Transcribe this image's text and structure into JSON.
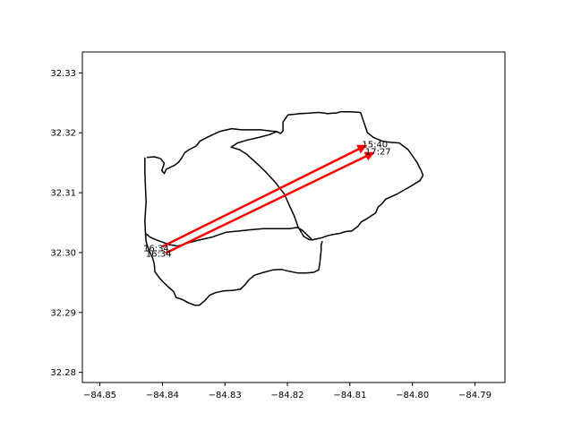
{
  "chart_data": {
    "type": "line",
    "title": "",
    "xlabel": "",
    "ylabel": "",
    "xlim": [
      -84.8528,
      -84.7852
    ],
    "ylim": [
      32.2783,
      32.3335
    ],
    "grid": false,
    "x_ticks": [
      -84.85,
      -84.84,
      -84.83,
      -84.82,
      -84.81,
      -84.8,
      -84.79
    ],
    "x_tick_labels": [
      "−84.85",
      "−84.84",
      "−84.83",
      "−84.82",
      "−84.81",
      "−84.80",
      "−84.79"
    ],
    "y_ticks": [
      32.28,
      32.29,
      32.3,
      32.31,
      32.32,
      32.33
    ],
    "y_tick_labels": [
      "32.28",
      "32.29",
      "32.30",
      "32.31",
      "32.32",
      "32.33"
    ],
    "boundaries": [
      {
        "color": "#000000",
        "points": [
          [
            -84.8425,
            32.3159
          ],
          [
            -84.8413,
            32.316
          ],
          [
            -84.8403,
            32.3157
          ],
          [
            -84.8397,
            32.3149
          ],
          [
            -84.8401,
            32.3137
          ],
          [
            -84.8397,
            32.3132
          ],
          [
            -84.8394,
            32.3139
          ],
          [
            -84.838,
            32.3146
          ],
          [
            -84.8374,
            32.3151
          ],
          [
            -84.8369,
            32.3158
          ],
          [
            -84.8364,
            32.3167
          ],
          [
            -84.8357,
            32.3172
          ],
          [
            -84.8346,
            32.3178
          ],
          [
            -84.834,
            32.3186
          ],
          [
            -84.8329,
            32.3192
          ],
          [
            -84.8317,
            32.3198
          ],
          [
            -84.8309,
            32.3202
          ],
          [
            -84.8297,
            32.3205
          ],
          [
            -84.8289,
            32.3207
          ],
          [
            -84.8274,
            32.3205
          ],
          [
            -84.8257,
            32.3205
          ],
          [
            -84.8243,
            32.3205
          ],
          [
            -84.8227,
            32.3203
          ],
          [
            -84.8217,
            32.3202
          ],
          [
            -84.8211,
            32.3199
          ],
          [
            -84.8207,
            32.3203
          ],
          [
            -84.8207,
            32.3203
          ],
          [
            -84.8207,
            32.3218
          ],
          [
            -84.8199,
            32.323
          ],
          [
            -84.818,
            32.3232
          ],
          [
            -84.8165,
            32.3233
          ],
          [
            -84.815,
            32.3234
          ],
          [
            -84.8141,
            32.3233
          ],
          [
            -84.8136,
            32.3232
          ],
          [
            -84.8127,
            32.3233
          ],
          [
            -84.8122,
            32.3233
          ],
          [
            -84.8115,
            32.3235
          ],
          [
            -84.81,
            32.3235
          ],
          [
            -84.8083,
            32.3234
          ],
          [
            -84.8072,
            32.32
          ],
          [
            -84.8062,
            32.3192
          ],
          [
            -84.8048,
            32.3186
          ],
          [
            -84.8035,
            32.3184
          ],
          [
            -84.8021,
            32.3183
          ],
          [
            -84.8007,
            32.3172
          ],
          [
            -84.7993,
            32.3151
          ],
          [
            -84.7986,
            32.3137
          ],
          [
            -84.7983,
            32.3129
          ],
          [
            -84.7988,
            32.312
          ],
          [
            -84.8004,
            32.311
          ],
          [
            -84.8024,
            32.3098
          ],
          [
            -84.8043,
            32.3089
          ],
          [
            -84.8049,
            32.3081
          ],
          [
            -84.8055,
            32.3076
          ],
          [
            -84.8059,
            32.3066
          ],
          [
            -84.8072,
            32.3057
          ],
          [
            -84.8082,
            32.3051
          ],
          [
            -84.8087,
            32.3044
          ],
          [
            -84.8097,
            32.3036
          ],
          [
            -84.8107,
            32.3035
          ],
          [
            -84.8116,
            32.3032
          ],
          [
            -84.8128,
            32.303
          ],
          [
            -84.8136,
            32.3028
          ],
          [
            -84.8144,
            32.3025
          ],
          [
            -84.8153,
            32.3023
          ],
          [
            -84.816,
            32.3021
          ],
          [
            -84.8166,
            32.3022
          ],
          [
            -84.8174,
            32.3027
          ],
          [
            -84.8183,
            32.3043
          ],
          [
            -84.8189,
            32.3061
          ],
          [
            -84.8197,
            32.3079
          ],
          [
            -84.8205,
            32.3098
          ],
          [
            -84.822,
            32.3118
          ],
          [
            -84.8235,
            32.3135
          ],
          [
            -84.825,
            32.315
          ],
          [
            -84.8265,
            32.3164
          ],
          [
            -84.8277,
            32.3172
          ],
          [
            -84.829,
            32.3176
          ],
          [
            -84.828,
            32.3183
          ],
          [
            -84.8264,
            32.3188
          ],
          [
            -84.8247,
            32.3192
          ],
          [
            -84.8229,
            32.3197
          ],
          [
            -84.8217,
            32.3202
          ]
        ]
      },
      {
        "color": "#000000",
        "points": [
          [
            -84.8428,
            32.3159
          ],
          [
            -84.8428,
            32.3135
          ],
          [
            -84.8427,
            32.3108
          ],
          [
            -84.8426,
            32.3085
          ],
          [
            -84.8428,
            32.3053
          ],
          [
            -84.8427,
            32.3032
          ],
          [
            -84.842,
            32.3026
          ],
          [
            -84.8412,
            32.3022
          ],
          [
            -84.8399,
            32.3017
          ],
          [
            -84.8388,
            32.3013
          ],
          [
            -84.8375,
            32.3011
          ],
          [
            -84.8359,
            32.3016
          ],
          [
            -84.8341,
            32.3021
          ],
          [
            -84.832,
            32.3026
          ],
          [
            -84.8298,
            32.3034
          ],
          [
            -84.8278,
            32.3036
          ],
          [
            -84.8259,
            32.3038
          ],
          [
            -84.8239,
            32.304
          ],
          [
            -84.8214,
            32.304
          ],
          [
            -84.8197,
            32.304
          ],
          [
            -84.8184,
            32.3042
          ],
          [
            -84.8176,
            32.3037
          ],
          [
            -84.8168,
            32.3029
          ],
          [
            -84.816,
            32.3021
          ]
        ]
      },
      {
        "color": "#000000",
        "points": [
          [
            -84.8427,
            32.3032
          ],
          [
            -84.8426,
            32.3018
          ],
          [
            -84.8422,
            32.3005
          ],
          [
            -84.8416,
            32.2992
          ],
          [
            -84.8413,
            32.2981
          ],
          [
            -84.8412,
            32.2968
          ],
          [
            -84.8405,
            32.2958
          ],
          [
            -84.84,
            32.2952
          ],
          [
            -84.8391,
            32.2943
          ],
          [
            -84.8382,
            32.2935
          ],
          [
            -84.8378,
            32.2925
          ],
          [
            -84.8369,
            32.2922
          ],
          [
            -84.8358,
            32.2916
          ],
          [
            -84.8348,
            32.2912
          ],
          [
            -84.8341,
            32.2912
          ],
          [
            -84.8332,
            32.292
          ],
          [
            -84.8324,
            32.2929
          ],
          [
            -84.8315,
            32.2933
          ],
          [
            -84.8302,
            32.2936
          ],
          [
            -84.8287,
            32.2937
          ],
          [
            -84.8275,
            32.2939
          ],
          [
            -84.8268,
            32.2946
          ],
          [
            -84.8262,
            32.2954
          ],
          [
            -84.8253,
            32.2962
          ],
          [
            -84.8238,
            32.2967
          ],
          [
            -84.8223,
            32.2971
          ],
          [
            -84.821,
            32.2972
          ],
          [
            -84.8198,
            32.2969
          ],
          [
            -84.8184,
            32.2966
          ],
          [
            -84.817,
            32.2966
          ],
          [
            -84.8158,
            32.2967
          ],
          [
            -84.815,
            32.2971
          ],
          [
            -84.8148,
            32.2983
          ],
          [
            -84.8147,
            32.2994
          ],
          [
            -84.8146,
            32.3004
          ],
          [
            -84.8146,
            32.3013
          ],
          [
            -84.8144,
            32.3019
          ]
        ]
      }
    ],
    "arrows": [
      {
        "color": "#ff0000",
        "start": [
          -84.84,
          32.301
        ],
        "end": [
          -84.8074,
          32.3179
        ]
      },
      {
        "color": "#ff0000",
        "start": [
          -84.8395,
          32.2999
        ],
        "end": [
          -84.8062,
          32.3167
        ]
      }
    ],
    "annotations": [
      {
        "text": "16:34",
        "x": -84.841,
        "y": 32.3008
      },
      {
        "text": "16:34",
        "x": -84.8406,
        "y": 32.2999
      },
      {
        "text": "15:40",
        "x": -84.806,
        "y": 32.3182
      },
      {
        "text": "17:27",
        "x": -84.8055,
        "y": 32.317
      }
    ]
  }
}
